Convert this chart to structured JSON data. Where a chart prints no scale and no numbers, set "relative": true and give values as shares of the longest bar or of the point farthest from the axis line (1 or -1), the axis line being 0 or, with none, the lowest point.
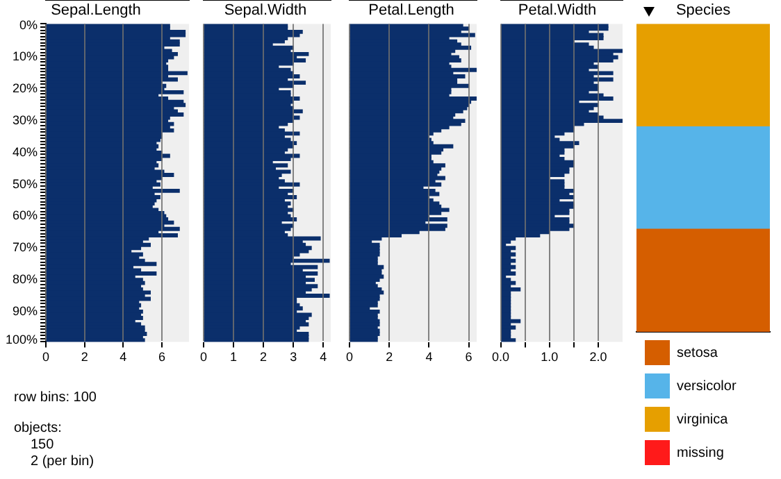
{
  "chart_data": [
    {
      "type": "bar",
      "orientation": "horizontal",
      "title": "Sepal.Length",
      "categories": [
        "0%",
        null,
        null,
        null,
        null,
        null,
        null,
        null,
        null,
        null,
        "10%",
        null,
        null,
        null,
        null,
        null,
        null,
        null,
        null,
        null,
        "20%",
        null,
        null,
        null,
        null,
        null,
        null,
        null,
        null,
        null,
        "30%",
        null,
        null,
        null,
        null,
        null,
        null,
        null,
        null,
        null,
        "40%",
        null,
        null,
        null,
        null,
        null,
        null,
        null,
        null,
        null,
        "50%",
        null,
        null,
        null,
        null,
        null,
        null,
        null,
        null,
        null,
        "60%",
        null,
        null,
        null,
        null,
        null,
        null,
        null,
        null,
        null,
        "70%",
        null,
        null,
        null,
        null,
        null,
        null,
        null,
        null,
        null,
        "80%",
        null,
        null,
        null,
        null,
        null,
        null,
        null,
        null,
        null,
        "90%",
        null,
        null,
        null,
        null,
        null,
        null,
        null,
        null,
        "100%"
      ],
      "color": "#0b2f6b",
      "values": [
        6.4,
        6.4,
        7.2,
        7.2,
        6.4,
        6.9,
        6.9,
        6.1,
        6.5,
        6.8,
        6.6,
        6.3,
        6.2,
        6.3,
        6.3,
        7.3,
        6.3,
        6.8,
        6.0,
        6.2,
        6.1,
        7.1,
        5.8,
        6.3,
        7.1,
        7.2,
        6.6,
        6.8,
        7.1,
        6.4,
        6.3,
        6.6,
        6.4,
        6.6,
        6.0,
        6.0,
        5.9,
        5.7,
        5.8,
        5.7,
        6.0,
        6.4,
        6.0,
        5.7,
        5.8,
        5.6,
        6.1,
        6.6,
        6.0,
        5.7,
        5.9,
        5.5,
        6.9,
        5.6,
        5.9,
        5.7,
        5.6,
        5.5,
        5.8,
        6.1,
        6.2,
        6.3,
        6.6,
        6.1,
        6.9,
        5.8,
        6.8,
        5.3,
        5.0,
        5.4,
        4.9,
        4.4,
        5.0,
        4.8,
        5.1,
        5.7,
        4.5,
        4.9,
        5.7,
        4.6,
        5.0,
        5.1,
        4.9,
        5.0,
        5.4,
        5.1,
        5.4,
        4.8,
        4.9,
        4.8,
        5.0,
        4.9,
        5.0,
        4.6,
        4.9,
        5.1,
        5.1,
        5.2,
        5.0,
        5.1
      ],
      "xlim": [
        0,
        7.4
      ],
      "xticks": [
        0,
        2,
        4,
        6
      ],
      "grid": "x",
      "annotations": [
        "row bins: 100",
        "objects:",
        "150",
        "2 (per bin)"
      ]
    },
    {
      "type": "bar",
      "orientation": "horizontal",
      "title": "Sepal.Width",
      "categories": [
        null,
        null,
        null,
        null,
        null,
        null,
        null,
        null,
        null,
        null,
        null,
        null,
        null,
        null,
        null,
        null,
        null,
        null,
        null,
        null,
        null,
        null,
        null,
        null,
        null,
        null,
        null,
        null,
        null,
        null,
        null,
        null,
        null,
        null,
        null,
        null,
        null,
        null,
        null,
        null,
        null,
        null,
        null,
        null,
        null,
        null,
        null,
        null,
        null,
        null,
        null,
        null,
        null,
        null,
        null,
        null,
        null,
        null,
        null,
        null,
        null,
        null,
        null,
        null,
        null,
        null,
        null,
        null,
        null,
        null,
        null,
        null,
        null,
        null,
        null,
        null,
        null,
        null,
        null,
        null,
        null,
        null,
        null,
        null,
        null,
        null,
        null,
        null,
        null,
        null,
        null,
        null,
        null,
        null,
        null,
        null,
        null,
        null,
        null,
        null
      ],
      "color": "#0b2f6b",
      "values": [
        2.8,
        2.8,
        3.3,
        3.2,
        2.8,
        2.7,
        2.3,
        3.0,
        2.9,
        3.5,
        3.1,
        3.4,
        3.0,
        2.5,
        2.9,
        3.0,
        3.2,
        2.8,
        3.4,
        3.0,
        2.5,
        2.9,
        2.9,
        3.2,
        3.0,
        2.9,
        3.0,
        3.3,
        3.0,
        3.2,
        3.0,
        2.8,
        2.5,
        2.7,
        3.2,
        2.7,
        2.9,
        3.1,
        3.0,
        2.8,
        2.7,
        3.2,
        2.9,
        2.3,
        2.8,
        2.4,
        2.9,
        2.6,
        2.5,
        2.7,
        3.2,
        2.5,
        3.0,
        2.8,
        3.1,
        2.7,
        2.9,
        2.8,
        3.0,
        2.8,
        2.9,
        3.1,
        2.6,
        3.0,
        2.9,
        2.7,
        2.8,
        3.9,
        3.3,
        3.4,
        3.6,
        3.5,
        3.2,
        3.0,
        4.2,
        2.9,
        3.8,
        3.3,
        3.8,
        3.4,
        3.7,
        3.4,
        3.8,
        3.6,
        3.4,
        4.2,
        3.1,
        3.1,
        3.2,
        3.3,
        3.1,
        3.6,
        3.5,
        3.4,
        3.5,
        3.2,
        3.1,
        3.5,
        3.5,
        3.5
      ],
      "xlim": [
        0,
        4.25
      ],
      "xticks": [
        0,
        1,
        2,
        3,
        4
      ],
      "grid": "x",
      "tick_labels": "x"
    },
    {
      "type": "bar",
      "orientation": "horizontal",
      "title": "Petal.Length",
      "categories": [
        null,
        null,
        null,
        null,
        null,
        null,
        null,
        null,
        null,
        null,
        null,
        null,
        null,
        null,
        null,
        null,
        null,
        null,
        null,
        null,
        null,
        null,
        null,
        null,
        null,
        null,
        null,
        null,
        null,
        null,
        null,
        null,
        null,
        null,
        null,
        null,
        null,
        null,
        null,
        null,
        null,
        null,
        null,
        null,
        null,
        null,
        null,
        null,
        null,
        null,
        null,
        null,
        null,
        null,
        null,
        null,
        null,
        null,
        null,
        null,
        null,
        null,
        null,
        null,
        null,
        null,
        null,
        null,
        null,
        null,
        null,
        null,
        null,
        null,
        null,
        null,
        null,
        null,
        null,
        null,
        null,
        null,
        null,
        null,
        null,
        null,
        null,
        null,
        null,
        null,
        null,
        null,
        null,
        null,
        null,
        null,
        null,
        null,
        null,
        null
      ],
      "color": "#0b2f6b",
      "values": [
        5.7,
        6.0,
        5.6,
        6.3,
        5.0,
        5.4,
        5.6,
        6.1,
        5.3,
        5.1,
        5.5,
        5.6,
        5.0,
        5.1,
        6.4,
        5.2,
        5.8,
        5.4,
        5.4,
        6.0,
        5.1,
        5.1,
        5.0,
        6.4,
        6.1,
        6.0,
        5.9,
        5.7,
        5.3,
        5.2,
        5.8,
        5.6,
        5.0,
        4.6,
        4.2,
        4.0,
        4.1,
        4.2,
        5.2,
        4.7,
        4.6,
        4.1,
        4.1,
        4.2,
        4.8,
        4.6,
        4.5,
        4.4,
        4.8,
        4.3,
        4.6,
        3.7,
        4.3,
        4.5,
        4.0,
        4.2,
        4.5,
        4.6,
        5.0,
        4.6,
        4.0,
        4.9,
        3.8,
        4.9,
        4.8,
        3.5,
        2.6,
        1.6,
        1.1,
        1.5,
        1.5,
        1.5,
        1.5,
        1.4,
        1.4,
        1.4,
        1.7,
        1.6,
        1.6,
        1.7,
        1.5,
        1.3,
        1.4,
        1.6,
        1.7,
        1.5,
        1.5,
        1.4,
        1.4,
        1.0,
        1.5,
        1.4,
        1.4,
        1.5,
        1.5,
        1.4,
        1.5,
        1.5,
        1.4,
        1.4
      ],
      "xlim": [
        0,
        6.4
      ],
      "xticks": [
        0,
        2,
        4,
        6
      ],
      "grid": "x",
      "tick_labels": "x"
    },
    {
      "type": "bar",
      "orientation": "horizontal",
      "title": "Petal.Width",
      "categories": [
        null,
        null,
        null,
        null,
        null,
        null,
        null,
        null,
        null,
        null,
        null,
        null,
        null,
        null,
        null,
        null,
        null,
        null,
        null,
        null,
        null,
        null,
        null,
        null,
        null,
        null,
        null,
        null,
        null,
        null,
        null,
        null,
        null,
        null,
        null,
        null,
        null,
        null,
        null,
        null,
        null,
        null,
        null,
        null,
        null,
        null,
        null,
        null,
        null,
        null,
        null,
        null,
        null,
        null,
        null,
        null,
        null,
        null,
        null,
        null,
        null,
        null,
        null,
        null,
        null,
        null,
        null,
        null,
        null,
        null,
        null,
        null,
        null,
        null,
        null,
        null,
        null,
        null,
        null,
        null,
        null,
        null,
        null,
        null,
        null,
        null,
        null,
        null,
        null,
        null,
        null,
        null,
        null,
        null,
        null,
        null,
        null,
        null,
        null,
        null
      ],
      "color": "#0b2f6b",
      "values": [
        2.2,
        2.2,
        1.8,
        2.1,
        2.1,
        1.5,
        1.8,
        1.9,
        2.5,
        2.3,
        2.4,
        2.3,
        1.9,
        2.0,
        1.8,
        2.3,
        1.9,
        2.3,
        1.9,
        2.0,
        2.0,
        1.8,
        2.1,
        2.3,
        1.6,
        2.0,
        1.9,
        1.8,
        2.0,
        2.1,
        2.5,
        1.7,
        1.5,
        1.5,
        1.3,
        1.1,
        1.2,
        1.6,
        1.5,
        1.3,
        1.3,
        1.2,
        1.3,
        1.5,
        1.5,
        1.4,
        1.4,
        1.3,
        1.0,
        1.3,
        1.3,
        1.3,
        1.5,
        1.4,
        1.5,
        1.2,
        1.5,
        1.5,
        1.4,
        1.4,
        1.1,
        1.4,
        1.4,
        1.5,
        1.4,
        1.0,
        0.8,
        0.3,
        0.2,
        0.1,
        0.3,
        0.2,
        0.3,
        0.2,
        0.3,
        0.2,
        0.3,
        0.2,
        0.3,
        0.1,
        0.2,
        0.3,
        0.2,
        0.4,
        0.2,
        0.2,
        0.2,
        0.2,
        0.2,
        0.2,
        0.2,
        0.2,
        0.2,
        0.4,
        0.2,
        0.3,
        0.2,
        0.2,
        0.2,
        0.3
      ],
      "xlim": [
        0,
        2.5
      ],
      "xticks": [
        {
          "value": 0,
          "label": "0.0"
        },
        {
          "value": 0.5,
          "label": null
        },
        {
          "value": 1,
          "label": "1.0"
        },
        {
          "value": 1.5,
          "label": null
        },
        {
          "value": 2,
          "label": "2.0"
        }
      ],
      "grid": "x",
      "tick_labels": "x"
    },
    {
      "type": "bar",
      "stacked": true,
      "relative": true,
      "title": "Species",
      "legend": "bottom",
      "tick_labels": false,
      "categories": [
        null
      ],
      "series": [
        {
          "name": "setosa",
          "color": "#d55e00",
          "values": [
            0.333
          ]
        },
        {
          "name": "versicolor",
          "color": "#56b4e9",
          "values": [
            0.333
          ]
        },
        {
          "name": "virginica",
          "color": "#e69f00",
          "values": [
            0.334
          ]
        },
        {
          "name": "missing",
          "color": "#ff1a1a",
          "values": [
            null
          ]
        }
      ]
    }
  ]
}
